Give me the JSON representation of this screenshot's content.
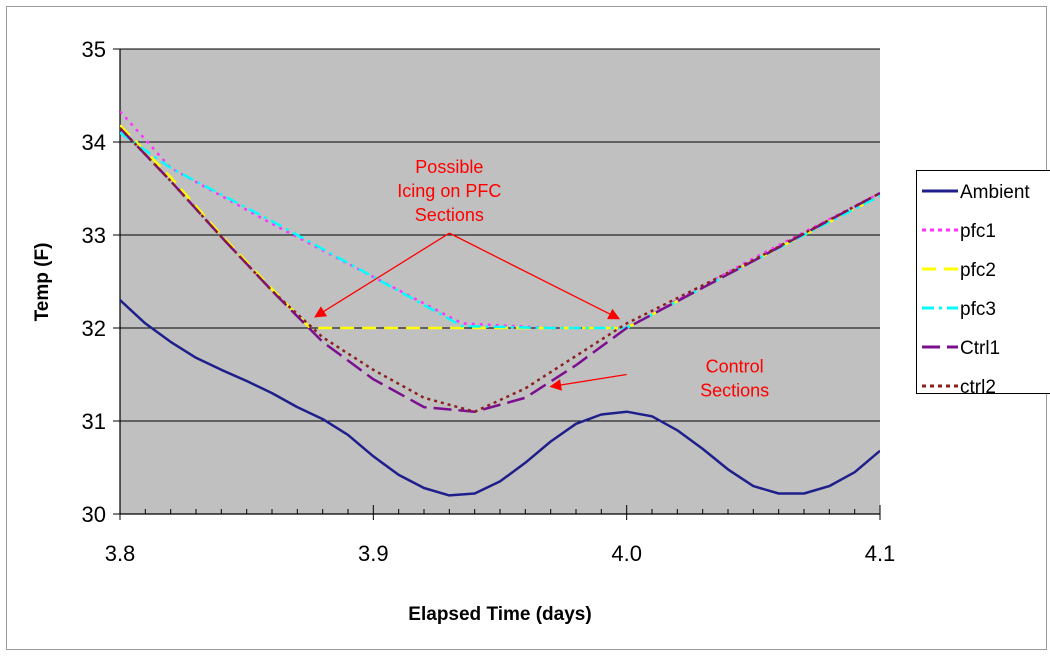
{
  "chart_data": {
    "type": "line",
    "title": "",
    "xlabel": "Elapsed Time (days)",
    "ylabel": "Temp (F)",
    "xlim": [
      3.8,
      4.1
    ],
    "ylim": [
      30,
      35
    ],
    "x_ticks": [
      "3.8",
      "3.9",
      "4.0",
      "4.1"
    ],
    "y_ticks": [
      "30",
      "31",
      "32",
      "33",
      "34",
      "35"
    ],
    "grid": "horizontal",
    "plot_background": "#C0C0C0",
    "legend_position": "right",
    "series": [
      {
        "name": "Ambient",
        "color": "#1F1F8C",
        "dash": "solid",
        "points": [
          [
            3.8,
            32.3
          ],
          [
            3.81,
            32.05
          ],
          [
            3.82,
            31.85
          ],
          [
            3.83,
            31.68
          ],
          [
            3.84,
            31.55
          ],
          [
            3.85,
            31.43
          ],
          [
            3.86,
            31.3
          ],
          [
            3.87,
            31.15
          ],
          [
            3.88,
            31.02
          ],
          [
            3.89,
            30.85
          ],
          [
            3.9,
            30.62
          ],
          [
            3.91,
            30.42
          ],
          [
            3.92,
            30.28
          ],
          [
            3.93,
            30.2
          ],
          [
            3.94,
            30.22
          ],
          [
            3.95,
            30.35
          ],
          [
            3.96,
            30.55
          ],
          [
            3.97,
            30.78
          ],
          [
            3.98,
            30.97
          ],
          [
            3.99,
            31.07
          ],
          [
            4.0,
            31.1
          ],
          [
            4.01,
            31.05
          ],
          [
            4.02,
            30.9
          ],
          [
            4.03,
            30.7
          ],
          [
            4.04,
            30.48
          ],
          [
            4.05,
            30.3
          ],
          [
            4.06,
            30.22
          ],
          [
            4.07,
            30.22
          ],
          [
            4.08,
            30.3
          ],
          [
            4.09,
            30.45
          ],
          [
            4.1,
            30.68
          ]
        ]
      },
      {
        "name": "pfc1",
        "color": "#FF33FF",
        "dash": "dot",
        "points": [
          [
            3.8,
            34.33
          ],
          [
            3.82,
            33.72
          ],
          [
            3.86,
            33.12
          ],
          [
            3.9,
            32.55
          ],
          [
            3.935,
            32.05
          ],
          [
            3.97,
            32.0
          ],
          [
            4.0,
            32.0
          ],
          [
            4.05,
            32.75
          ],
          [
            4.1,
            33.45
          ]
        ]
      },
      {
        "name": "pfc2",
        "color": "#FFFF00",
        "dash": "dash",
        "points": [
          [
            3.8,
            34.18
          ],
          [
            3.82,
            33.62
          ],
          [
            3.84,
            33.0
          ],
          [
            3.86,
            32.42
          ],
          [
            3.875,
            32.0
          ],
          [
            3.95,
            32.0
          ],
          [
            4.0,
            32.0
          ],
          [
            4.05,
            32.72
          ],
          [
            4.1,
            33.42
          ]
        ]
      },
      {
        "name": "pfc3",
        "color": "#00FFFF",
        "dash": "dashdot",
        "points": [
          [
            3.8,
            34.1
          ],
          [
            3.82,
            33.72
          ],
          [
            3.86,
            33.15
          ],
          [
            3.9,
            32.55
          ],
          [
            3.935,
            32.02
          ],
          [
            3.97,
            32.0
          ],
          [
            4.0,
            32.0
          ],
          [
            4.05,
            32.72
          ],
          [
            4.1,
            33.42
          ]
        ]
      },
      {
        "name": "Ctrl1",
        "color": "#7B0F8E",
        "dash": "longdash",
        "points": [
          [
            3.8,
            34.15
          ],
          [
            3.82,
            33.58
          ],
          [
            3.84,
            32.98
          ],
          [
            3.86,
            32.4
          ],
          [
            3.88,
            31.85
          ],
          [
            3.9,
            31.45
          ],
          [
            3.92,
            31.15
          ],
          [
            3.94,
            31.1
          ],
          [
            3.96,
            31.25
          ],
          [
            3.98,
            31.6
          ],
          [
            4.0,
            32.0
          ],
          [
            4.05,
            32.72
          ],
          [
            4.1,
            33.45
          ]
        ]
      },
      {
        "name": "ctrl2",
        "color": "#8B2020",
        "dash": "shortdot",
        "points": [
          [
            3.8,
            34.15
          ],
          [
            3.82,
            33.58
          ],
          [
            3.84,
            32.98
          ],
          [
            3.86,
            32.4
          ],
          [
            3.88,
            31.9
          ],
          [
            3.9,
            31.55
          ],
          [
            3.92,
            31.25
          ],
          [
            3.94,
            31.1
          ],
          [
            3.96,
            31.35
          ],
          [
            3.98,
            31.7
          ],
          [
            4.0,
            32.05
          ],
          [
            4.05,
            32.73
          ],
          [
            4.1,
            33.45
          ]
        ]
      }
    ],
    "annotations": [
      {
        "id": "icing",
        "lines": [
          "Possible",
          "Icing on PFC",
          "Sections"
        ],
        "color": "#FF0000",
        "anchor": [
          3.93,
          33.02
        ],
        "arrows": [
          [
            3.877,
            32.12
          ],
          [
            3.997,
            32.1
          ]
        ]
      },
      {
        "id": "control",
        "lines": [
          "Control",
          "Sections"
        ],
        "color": "#FF0000",
        "anchor": [
          4.0,
          31.5
        ],
        "arrows": [
          [
            3.97,
            31.37
          ]
        ]
      }
    ]
  }
}
